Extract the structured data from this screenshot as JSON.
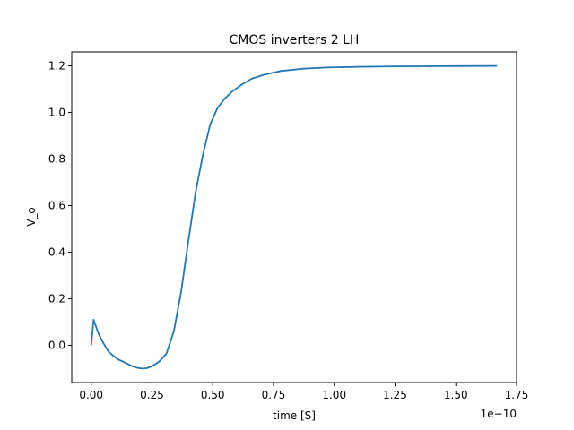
{
  "chart_data": {
    "type": "line",
    "title": "CMOS inverters 2 LH",
    "xlabel": "time [S]",
    "ylabel": "V_o",
    "x_offset_label": "1e−10",
    "xlim": [
      -0.08,
      1.75
    ],
    "ylim": [
      -0.16,
      1.26
    ],
    "grid": false,
    "legend": "none",
    "xticks": [
      {
        "value": 0.0,
        "label": "0.00"
      },
      {
        "value": 0.25,
        "label": "0.25"
      },
      {
        "value": 0.5,
        "label": "0.50"
      },
      {
        "value": 0.75,
        "label": "0.75"
      },
      {
        "value": 1.0,
        "label": "1.00"
      },
      {
        "value": 1.25,
        "label": "1.25"
      },
      {
        "value": 1.5,
        "label": "1.50"
      },
      {
        "value": 1.75,
        "label": "1.75"
      }
    ],
    "yticks": [
      {
        "value": 0.0,
        "label": "0.0"
      },
      {
        "value": 0.2,
        "label": "0.2"
      },
      {
        "value": 0.4,
        "label": "0.4"
      },
      {
        "value": 0.6,
        "label": "0.6"
      },
      {
        "value": 0.8,
        "label": "0.8"
      },
      {
        "value": 1.0,
        "label": "1.0"
      },
      {
        "value": 1.2,
        "label": "1.2"
      }
    ],
    "series": [
      {
        "color": "#1f77b4",
        "x": [
          0.0,
          0.01,
          0.03,
          0.05,
          0.07,
          0.09,
          0.11,
          0.13,
          0.15,
          0.17,
          0.19,
          0.21,
          0.23,
          0.25,
          0.28,
          0.31,
          0.34,
          0.37,
          0.4,
          0.43,
          0.46,
          0.49,
          0.52,
          0.55,
          0.58,
          0.62,
          0.66,
          0.71,
          0.78,
          0.87,
          0.97,
          1.1,
          1.25,
          1.45,
          1.67
        ],
        "y": [
          0.0,
          0.11,
          0.05,
          0.01,
          -0.025,
          -0.045,
          -0.06,
          -0.07,
          -0.08,
          -0.09,
          -0.097,
          -0.1,
          -0.098,
          -0.09,
          -0.07,
          -0.035,
          0.06,
          0.23,
          0.45,
          0.66,
          0.82,
          0.95,
          1.02,
          1.06,
          1.09,
          1.12,
          1.145,
          1.162,
          1.178,
          1.188,
          1.193,
          1.196,
          1.198,
          1.199,
          1.2
        ]
      }
    ]
  }
}
